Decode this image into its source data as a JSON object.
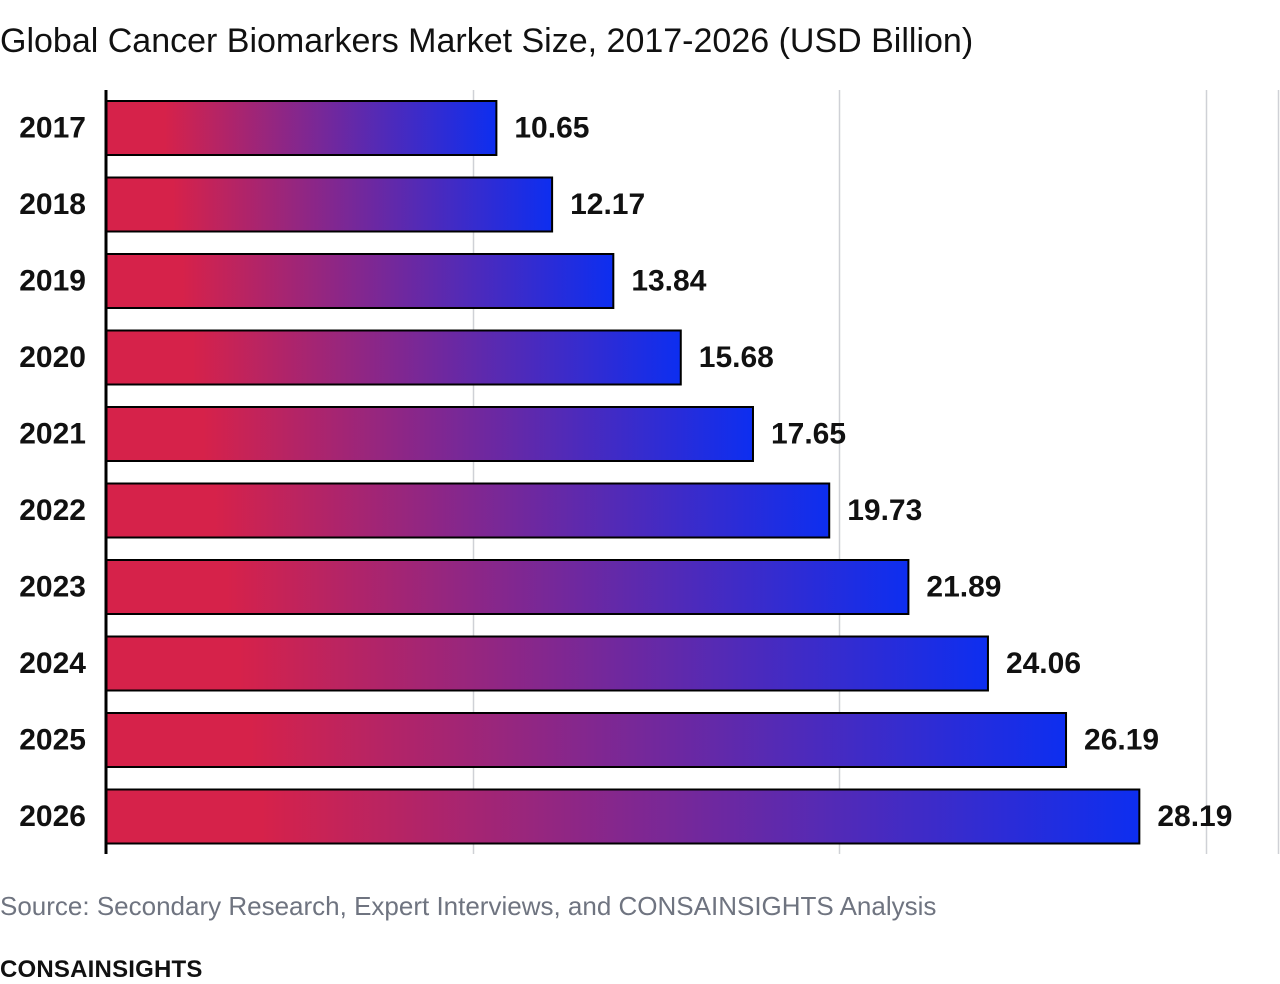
{
  "chart_data": {
    "type": "bar",
    "orientation": "horizontal",
    "title": "Global Cancer Biomarkers Market Size, 2017-2026 (USD Billion)",
    "categories": [
      "2017",
      "2018",
      "2019",
      "2020",
      "2021",
      "2022",
      "2023",
      "2024",
      "2025",
      "2026"
    ],
    "values": [
      10.65,
      12.17,
      13.84,
      15.68,
      17.65,
      19.73,
      21.89,
      24.06,
      26.19,
      28.19
    ],
    "value_labels": [
      "10.65",
      "12.17",
      "13.84",
      "15.68",
      "17.65",
      "19.73",
      "21.89",
      "24.06",
      "26.19",
      "28.19"
    ],
    "xlabel": "",
    "ylabel": "",
    "xlim": [
      0,
      32
    ],
    "grid": true,
    "bar_gradient": [
      "#d6224a",
      "#0d2ef0"
    ]
  },
  "footer": {
    "source": "Source: Secondary Research, Expert Interviews, and CONSAINSIGHTS Analysis",
    "brand": "CONSAINSIGHTS"
  }
}
